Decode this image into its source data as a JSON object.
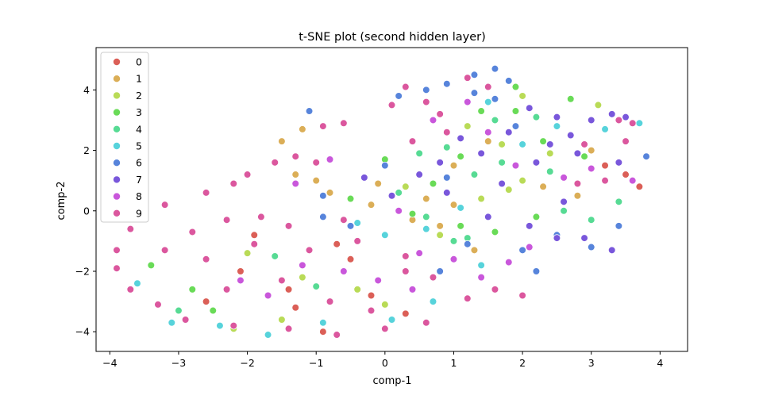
{
  "chart_data": {
    "type": "scatter",
    "title": "t-SNE plot (second hidden layer)",
    "xlabel": "comp-1",
    "ylabel": "comp-2",
    "xlim": [
      -4.2,
      4.4
    ],
    "ylim": [
      -4.65,
      5.4
    ],
    "xticks": [
      -4,
      -3,
      -2,
      -1,
      0,
      1,
      2,
      3,
      4
    ],
    "yticks": [
      -4,
      -2,
      0,
      2,
      4
    ],
    "grid": false,
    "legend_placement": "top-left",
    "legend": [
      "0",
      "1",
      "2",
      "3",
      "4",
      "5",
      "6",
      "7",
      "8",
      "9"
    ],
    "colors": [
      "#db5f57",
      "#dbae57",
      "#b9db57",
      "#69db57",
      "#57db94",
      "#57d3db",
      "#5784db",
      "#7957db",
      "#c957db",
      "#db579e"
    ],
    "series": [
      {
        "name": "0",
        "points": [
          [
            -0.5,
            -1.6
          ],
          [
            -0.9,
            -4.0
          ],
          [
            -1.4,
            -2.6
          ],
          [
            -2.1,
            -2.0
          ],
          [
            -2.6,
            -3.0
          ],
          [
            -1.3,
            -3.2
          ],
          [
            -0.2,
            -2.8
          ],
          [
            0.3,
            -3.4
          ],
          [
            3.2,
            1.5
          ],
          [
            3.7,
            0.8
          ],
          [
            3.5,
            1.2
          ],
          [
            -1.9,
            -0.8
          ],
          [
            -0.7,
            -1.1
          ]
        ]
      },
      {
        "name": "1",
        "points": [
          [
            -1.3,
            1.2
          ],
          [
            -1.0,
            1.0
          ],
          [
            -1.5,
            2.3
          ],
          [
            -1.2,
            2.7
          ],
          [
            -0.8,
            0.6
          ],
          [
            -0.2,
            0.2
          ],
          [
            0.4,
            -0.3
          ],
          [
            0.8,
            -0.5
          ],
          [
            1.0,
            0.2
          ],
          [
            1.3,
            -1.3
          ],
          [
            1.5,
            2.3
          ],
          [
            1.0,
            1.5
          ],
          [
            2.3,
            0.8
          ],
          [
            2.8,
            0.5
          ],
          [
            3.0,
            2.0
          ],
          [
            0.6,
            0.4
          ],
          [
            -0.1,
            0.9
          ]
        ]
      },
      {
        "name": "2",
        "points": [
          [
            -2.0,
            -1.4
          ],
          [
            -1.5,
            -3.6
          ],
          [
            -2.2,
            -3.9
          ],
          [
            -1.2,
            -2.2
          ],
          [
            -0.4,
            -2.6
          ],
          [
            0.0,
            -3.1
          ],
          [
            1.2,
            2.8
          ],
          [
            1.7,
            2.2
          ],
          [
            2.0,
            1.0
          ],
          [
            2.4,
            1.9
          ],
          [
            3.1,
            3.5
          ],
          [
            2.0,
            3.8
          ],
          [
            1.4,
            0.4
          ],
          [
            0.8,
            -0.8
          ],
          [
            1.8,
            0.7
          ],
          [
            0.3,
            0.8
          ]
        ]
      },
      {
        "name": "3",
        "points": [
          [
            -2.8,
            -2.6
          ],
          [
            -3.4,
            -1.8
          ],
          [
            -2.5,
            -3.3
          ],
          [
            -0.5,
            0.4
          ],
          [
            0.0,
            1.7
          ],
          [
            0.7,
            0.9
          ],
          [
            1.1,
            1.8
          ],
          [
            1.4,
            3.3
          ],
          [
            1.9,
            3.3
          ],
          [
            2.3,
            2.3
          ],
          [
            2.7,
            3.7
          ],
          [
            1.1,
            -0.5
          ],
          [
            2.2,
            -0.2
          ],
          [
            2.9,
            1.8
          ],
          [
            1.6,
            -0.7
          ],
          [
            0.4,
            -0.1
          ],
          [
            1.9,
            4.1
          ]
        ]
      },
      {
        "name": "4",
        "points": [
          [
            -3.0,
            -3.3
          ],
          [
            -1.0,
            -2.5
          ],
          [
            -1.6,
            -1.5
          ],
          [
            0.2,
            0.6
          ],
          [
            0.6,
            -0.2
          ],
          [
            0.9,
            2.1
          ],
          [
            1.3,
            1.2
          ],
          [
            1.6,
            3.0
          ],
          [
            2.2,
            3.1
          ],
          [
            2.6,
            0.0
          ],
          [
            3.0,
            -0.3
          ],
          [
            1.0,
            -1.0
          ],
          [
            1.7,
            1.6
          ],
          [
            2.4,
            1.3
          ],
          [
            0.5,
            1.9
          ],
          [
            3.4,
            0.3
          ],
          [
            1.2,
            -0.9
          ]
        ]
      },
      {
        "name": "5",
        "points": [
          [
            -3.6,
            -2.4
          ],
          [
            -3.1,
            -3.7
          ],
          [
            -2.4,
            -3.8
          ],
          [
            -1.7,
            -4.1
          ],
          [
            -0.9,
            -3.7
          ],
          [
            0.1,
            -3.6
          ],
          [
            0.7,
            -3.0
          ],
          [
            -0.4,
            -0.4
          ],
          [
            0.0,
            -0.8
          ],
          [
            0.6,
            -0.6
          ],
          [
            1.5,
            3.6
          ],
          [
            2.0,
            2.2
          ],
          [
            2.5,
            2.8
          ],
          [
            3.2,
            2.7
          ],
          [
            3.7,
            2.9
          ],
          [
            1.4,
            -1.8
          ],
          [
            1.1,
            0.1
          ]
        ]
      },
      {
        "name": "6",
        "points": [
          [
            -1.1,
            3.3
          ],
          [
            -0.9,
            0.5
          ],
          [
            -0.9,
            -0.2
          ],
          [
            -0.5,
            -0.5
          ],
          [
            0.0,
            1.5
          ],
          [
            0.2,
            3.8
          ],
          [
            0.6,
            4.0
          ],
          [
            0.9,
            4.2
          ],
          [
            1.3,
            4.5
          ],
          [
            1.6,
            4.7
          ],
          [
            1.8,
            4.3
          ],
          [
            1.3,
            3.9
          ],
          [
            1.6,
            3.7
          ],
          [
            0.9,
            1.1
          ],
          [
            1.2,
            -1.1
          ],
          [
            0.8,
            -2.0
          ],
          [
            2.0,
            -1.3
          ],
          [
            2.5,
            -0.8
          ],
          [
            3.0,
            -1.2
          ],
          [
            3.4,
            -0.5
          ],
          [
            3.8,
            1.8
          ],
          [
            2.2,
            -2.0
          ],
          [
            1.9,
            2.8
          ]
        ]
      },
      {
        "name": "7",
        "points": [
          [
            -0.3,
            1.1
          ],
          [
            0.1,
            0.5
          ],
          [
            0.5,
            1.2
          ],
          [
            0.8,
            1.6
          ],
          [
            1.1,
            2.4
          ],
          [
            1.4,
            1.9
          ],
          [
            1.8,
            2.6
          ],
          [
            2.1,
            3.4
          ],
          [
            2.5,
            3.1
          ],
          [
            2.7,
            2.5
          ],
          [
            3.0,
            3.0
          ],
          [
            3.3,
            3.2
          ],
          [
            3.5,
            3.1
          ],
          [
            2.4,
            2.2
          ],
          [
            2.8,
            1.9
          ],
          [
            3.4,
            1.6
          ],
          [
            2.5,
            -0.9
          ],
          [
            2.9,
            -0.9
          ],
          [
            3.3,
            -1.3
          ],
          [
            1.5,
            -0.2
          ],
          [
            2.1,
            -0.5
          ],
          [
            0.9,
            0.6
          ],
          [
            2.2,
            1.6
          ],
          [
            1.7,
            0.9
          ],
          [
            2.6,
            0.3
          ]
        ]
      },
      {
        "name": "8",
        "points": [
          [
            -2.1,
            -2.3
          ],
          [
            -1.7,
            -2.8
          ],
          [
            -1.2,
            -1.8
          ],
          [
            -0.6,
            -2.0
          ],
          [
            -0.1,
            -2.3
          ],
          [
            0.4,
            -2.6
          ],
          [
            1.0,
            -1.6
          ],
          [
            1.4,
            -2.2
          ],
          [
            1.8,
            -1.7
          ],
          [
            2.1,
            -1.2
          ],
          [
            0.2,
            0.0
          ],
          [
            0.5,
            -1.4
          ],
          [
            1.9,
            1.5
          ],
          [
            2.6,
            1.1
          ],
          [
            3.0,
            1.4
          ],
          [
            3.6,
            1.0
          ],
          [
            1.2,
            3.6
          ],
          [
            1.5,
            2.6
          ],
          [
            0.7,
            3.0
          ],
          [
            -1.3,
            0.9
          ],
          [
            -0.8,
            1.7
          ]
        ]
      },
      {
        "name": "9",
        "points": [
          [
            -2.0,
            1.2
          ],
          [
            -1.6,
            1.6
          ],
          [
            -1.3,
            1.8
          ],
          [
            -0.9,
            2.8
          ],
          [
            -0.6,
            2.9
          ],
          [
            -1.0,
            1.6
          ],
          [
            -2.6,
            0.6
          ],
          [
            -3.2,
            0.2
          ],
          [
            -3.7,
            -0.6
          ],
          [
            -3.9,
            -1.3
          ],
          [
            -3.9,
            -1.9
          ],
          [
            -3.7,
            -2.6
          ],
          [
            -3.3,
            -3.1
          ],
          [
            -2.9,
            -3.6
          ],
          [
            -2.2,
            -3.8
          ],
          [
            -1.4,
            -3.9
          ],
          [
            -0.7,
            -4.1
          ],
          [
            0.0,
            -3.9
          ],
          [
            0.6,
            -3.7
          ],
          [
            -0.6,
            -0.3
          ],
          [
            -1.4,
            -0.5
          ],
          [
            -2.3,
            -0.3
          ],
          [
            -2.8,
            -0.7
          ],
          [
            -3.2,
            -1.3
          ],
          [
            -2.6,
            -1.6
          ],
          [
            -1.9,
            -1.1
          ],
          [
            -1.1,
            -1.3
          ],
          [
            -0.4,
            -1.0
          ],
          [
            0.3,
            -1.5
          ],
          [
            0.7,
            -2.2
          ],
          [
            -1.5,
            -2.3
          ],
          [
            -2.3,
            -2.6
          ],
          [
            -0.8,
            -3.0
          ],
          [
            -0.2,
            -3.3
          ],
          [
            0.3,
            -2.0
          ],
          [
            0.3,
            4.1
          ],
          [
            0.6,
            3.6
          ],
          [
            0.8,
            3.2
          ],
          [
            1.2,
            4.4
          ],
          [
            1.5,
            4.1
          ],
          [
            0.9,
            2.6
          ],
          [
            0.4,
            2.3
          ],
          [
            0.1,
            3.5
          ],
          [
            3.4,
            3.0
          ],
          [
            3.6,
            2.9
          ],
          [
            3.2,
            1.0
          ],
          [
            2.8,
            0.9
          ],
          [
            3.5,
            2.3
          ],
          [
            2.9,
            2.2
          ],
          [
            1.2,
            -2.9
          ],
          [
            1.6,
            -2.6
          ],
          [
            2.0,
            -2.8
          ],
          [
            -2.2,
            0.9
          ],
          [
            -1.8,
            -0.2
          ]
        ]
      }
    ]
  }
}
